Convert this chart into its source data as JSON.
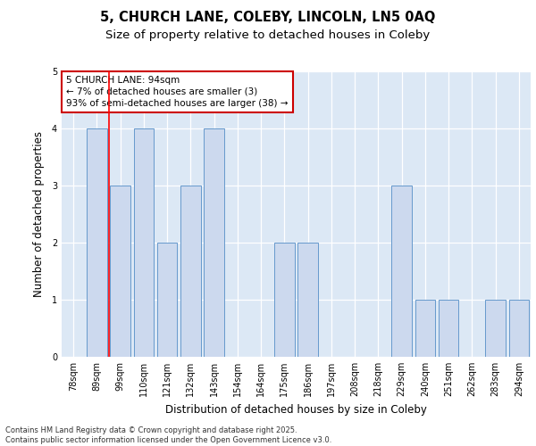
{
  "title1": "5, CHURCH LANE, COLEBY, LINCOLN, LN5 0AQ",
  "title2": "Size of property relative to detached houses in Coleby",
  "xlabel": "Distribution of detached houses by size in Coleby",
  "ylabel": "Number of detached properties",
  "categories": [
    "78sqm",
    "89sqm",
    "99sqm",
    "110sqm",
    "121sqm",
    "132sqm",
    "143sqm",
    "154sqm",
    "164sqm",
    "175sqm",
    "186sqm",
    "197sqm",
    "208sqm",
    "218sqm",
    "229sqm",
    "240sqm",
    "251sqm",
    "262sqm",
    "283sqm",
    "294sqm"
  ],
  "values": [
    0,
    4,
    3,
    4,
    2,
    3,
    4,
    0,
    0,
    2,
    2,
    0,
    0,
    0,
    3,
    1,
    1,
    0,
    1,
    1
  ],
  "bar_color": "#ccd9ee",
  "bar_edge_color": "#6699cc",
  "annotation_text": "5 CHURCH LANE: 94sqm\n← 7% of detached houses are smaller (3)\n93% of semi-detached houses are larger (38) →",
  "annotation_box_color": "white",
  "annotation_box_edge_color": "#cc0000",
  "redline_x": 1.5,
  "ylim": [
    0,
    5
  ],
  "yticks": [
    0,
    1,
    2,
    3,
    4,
    5
  ],
  "footer": "Contains HM Land Registry data © Crown copyright and database right 2025.\nContains public sector information licensed under the Open Government Licence v3.0.",
  "bg_color": "#dce8f5",
  "title_fontsize": 10.5,
  "subtitle_fontsize": 9.5,
  "tick_fontsize": 7,
  "label_fontsize": 8.5,
  "annotation_fontsize": 7.5,
  "footer_fontsize": 6
}
